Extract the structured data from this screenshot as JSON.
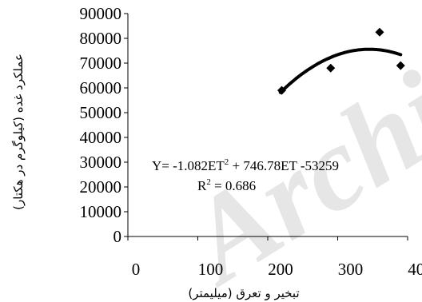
{
  "chart_data": {
    "type": "scatter",
    "title": "",
    "xlabel": "تبخیر و تعرق (میلیمتر)",
    "ylabel": "عملکرد غده (کیلوگرم در هکتار)",
    "xlim": [
      0,
      400
    ],
    "ylim": [
      0,
      90000
    ],
    "x_ticks": [
      "0",
      "100",
      "200",
      "300",
      "400"
    ],
    "y_ticks": [
      "0",
      "10000",
      "20000",
      "30000",
      "40000",
      "50000",
      "60000",
      "70000",
      "80000",
      "90000"
    ],
    "grid": false,
    "points": [
      {
        "x": 220,
        "y": 59000
      },
      {
        "x": 290,
        "y": 68000
      },
      {
        "x": 360,
        "y": 82500
      },
      {
        "x": 390,
        "y": 69000
      }
    ],
    "trendline": {
      "type": "polynomial",
      "coefficients": {
        "a": -1.082,
        "b": 746.78,
        "c": -53259
      },
      "x_range": [
        218,
        390
      ]
    },
    "equation_line1_prefix": "Y= -1.082ET",
    "equation_line1_sup": "2",
    "equation_line1_suffix": " + 746.78ET -53259",
    "r2_prefix": "R",
    "r2_sup": "2",
    "r2_suffix": " = 0.686",
    "watermark_text": "Archive"
  }
}
